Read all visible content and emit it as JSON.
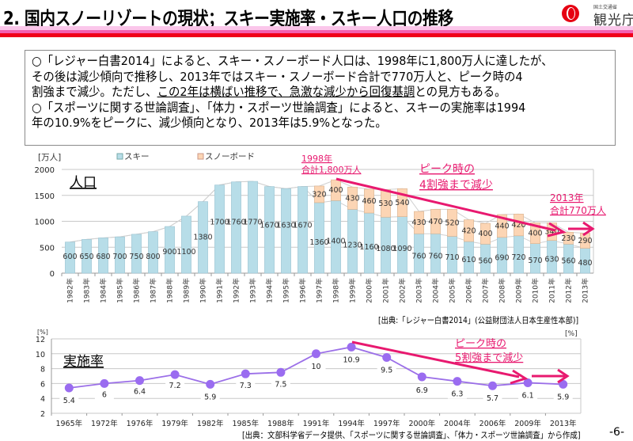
{
  "header": {
    "title": "2. 国内スノーリゾートの現状；スキー実施率・スキー人口の推移",
    "logo_small": "国土交通省",
    "logo_text": "観光庁"
  },
  "summary": {
    "line1": "○「レジャー白書2014」によると、スキー・スノーボード人口は、1998年に1,800万人に達したが、",
    "line2": "その後は減少傾向で推移し、2013年ではスキー・スノーボード合計で770万人と、ピーク時の4",
    "line3_pre": "割強まで減少。ただし、",
    "line3_u1": "この2年は横ばい推移で、急激な減少から回復基調",
    "line3_post": "との見方もある。",
    "line4": "○「スポーツに関する世論調査」、「体力・スポーツ世論調査」によると、スキーの実施率は1994",
    "line5": "年の10.9%をピークに、減少傾向となり、2013年は5.9%となった。"
  },
  "colors": {
    "ski": "#b7dde8",
    "snowboard": "#fcd5b4",
    "accent": "#e8196f",
    "line": "#9b6fe8",
    "marker": "#9a6cf0"
  },
  "chart_data": [
    {
      "type": "bar",
      "stacked": true,
      "title": "人口",
      "ylabel": "[万人]",
      "ylim": [
        0,
        2000
      ],
      "yticks": [
        0,
        500,
        1000,
        1500,
        2000
      ],
      "grid": true,
      "legend_position": "top",
      "categories": [
        "1982年",
        "1983年",
        "1984年",
        "1985年",
        "1986年",
        "1987年",
        "1988年",
        "1989年",
        "1990年",
        "1991年",
        "1992年",
        "1993年",
        "1994年",
        "1995年",
        "1996年",
        "1997年",
        "1998年",
        "1999年",
        "2000年",
        "2001年",
        "2002年",
        "2003年",
        "2004年",
        "2005年",
        "2006年",
        "2007年",
        "2008年",
        "2009年",
        "2010年",
        "2011年",
        "2012年",
        "2013年"
      ],
      "series": [
        {
          "name": "スキー",
          "values": [
            600,
            650,
            680,
            700,
            750,
            800,
            900,
            1100,
            1380,
            1700,
            1760,
            1770,
            1670,
            1630,
            1670,
            1360,
            1400,
            1230,
            1160,
            1080,
            1090,
            760,
            760,
            710,
            610,
            560,
            690,
            720,
            570,
            630,
            560,
            480
          ]
        },
        {
          "name": "スノーボード",
          "values": [
            null,
            null,
            null,
            null,
            null,
            null,
            null,
            null,
            null,
            null,
            null,
            null,
            null,
            null,
            null,
            320,
            400,
            430,
            460,
            530,
            540,
            430,
            470,
            520,
            420,
            400,
            440,
            420,
            400,
            340,
            230,
            290
          ]
        }
      ],
      "annotations": [
        {
          "text": "1998年",
          "text2": "合計1,800万人"
        },
        {
          "text": "ピーク時の",
          "text2": "4割強まで減少"
        },
        {
          "text": "2013年",
          "text2": "合計770万人"
        }
      ],
      "source": "[出典:「レジャー白書2014」(公益財団法人日本生産性本部)]"
    },
    {
      "type": "line",
      "title": "実施率",
      "ylabel": "[%]",
      "ylabel_right": "[%]",
      "ylim": [
        2,
        12
      ],
      "yticks": [
        2,
        4,
        6,
        8,
        10,
        12
      ],
      "grid": true,
      "categories": [
        "1965年",
        "1972年",
        "1976年",
        "1979年",
        "1982年",
        "1985年",
        "1988年",
        "1991年",
        "1994年",
        "1997年",
        "2000年",
        "2004年",
        "2006年",
        "2009年",
        "2013年"
      ],
      "values": [
        5.4,
        6,
        6.4,
        7.2,
        5.9,
        7.3,
        7.5,
        10,
        10.9,
        9.5,
        6.9,
        6.3,
        5.7,
        6.1,
        5.9
      ],
      "labels": [
        "5.4",
        "6",
        "6.4",
        "7.2",
        "5.9",
        "7.3",
        "7.5",
        "10",
        "10.9",
        "9.5",
        "6.9",
        "6.3",
        "5.7",
        "6.1",
        "5.9"
      ],
      "annotations": [
        {
          "text": "ピーク時の",
          "text2": "5割強まで減少"
        }
      ],
      "source": "[出典：文部科学省データ提供、「スポーツに関する世論調査」、「体力・スポーツ世論調査」から作成]"
    }
  ],
  "page_number": "-6-"
}
